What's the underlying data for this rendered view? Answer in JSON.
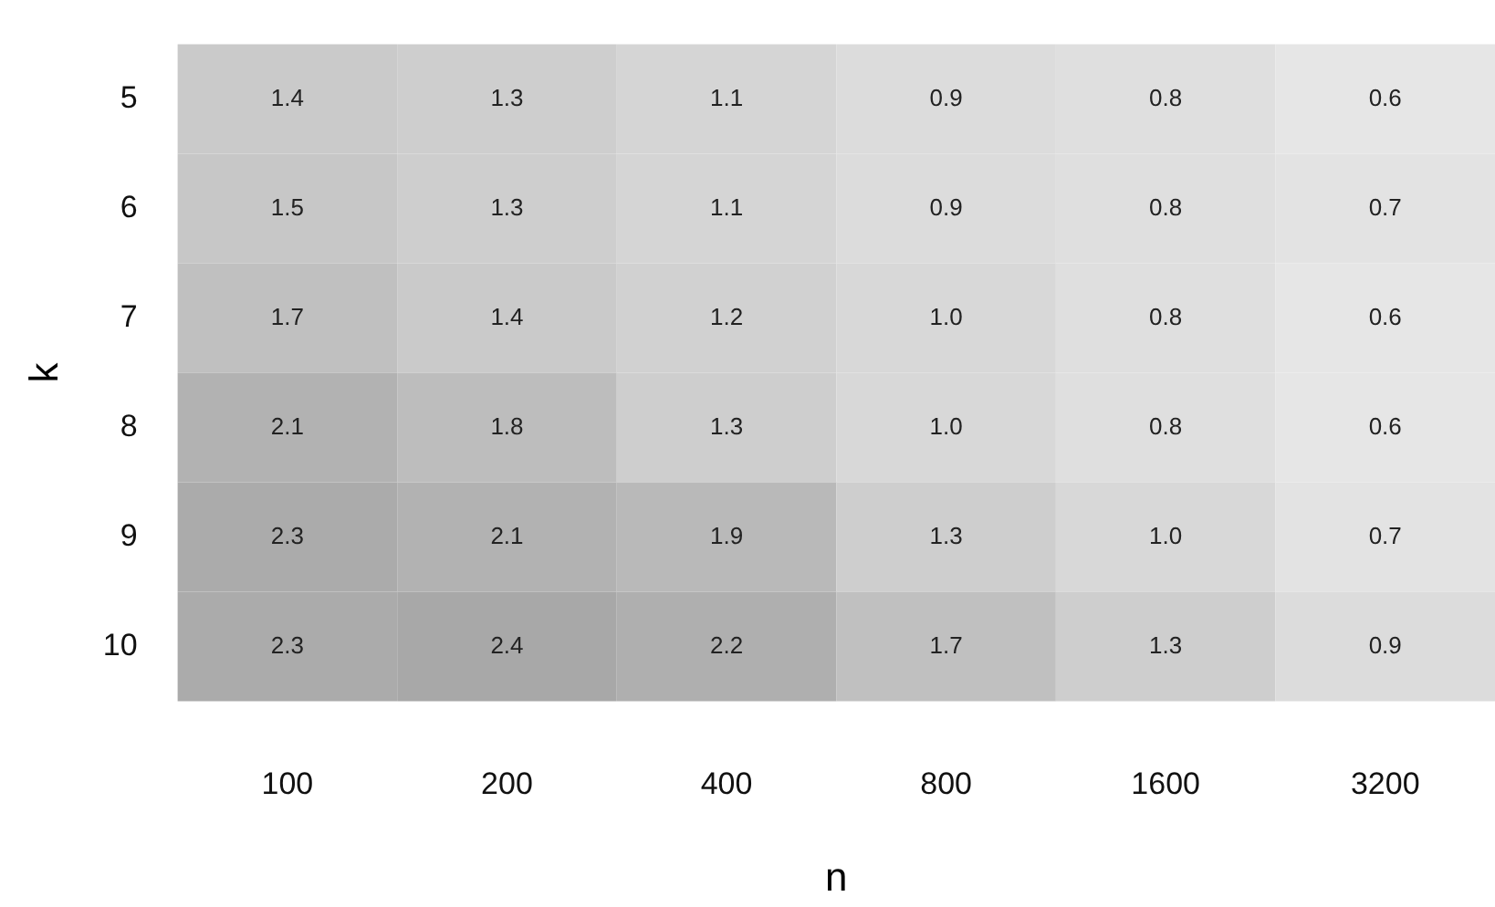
{
  "chart_data": {
    "type": "heatmap",
    "xlabel": "n",
    "ylabel": "k",
    "categories": [
      "100",
      "200",
      "400",
      "800",
      "1600",
      "3200"
    ],
    "y_categories": [
      "5",
      "6",
      "7",
      "8",
      "9",
      "10"
    ],
    "cells": [
      [
        1.4,
        1.3,
        1.1,
        0.9,
        0.8,
        0.6
      ],
      [
        1.5,
        1.3,
        1.1,
        0.9,
        0.8,
        0.7
      ],
      [
        1.7,
        1.4,
        1.2,
        1.0,
        0.8,
        0.6
      ],
      [
        2.1,
        1.8,
        1.3,
        1.0,
        0.8,
        0.6
      ],
      [
        2.3,
        2.1,
        1.9,
        1.3,
        1.0,
        0.7
      ],
      [
        2.3,
        2.4,
        2.2,
        1.7,
        1.3,
        0.9
      ]
    ],
    "cell_labels": [
      [
        "1.4",
        "1.3",
        "1.1",
        "0.9",
        "0.8",
        "0.6"
      ],
      [
        "1.5",
        "1.3",
        "1.1",
        "0.9",
        "0.8",
        "0.7"
      ],
      [
        "1.7",
        "1.4",
        "1.2",
        "1.0",
        "0.8",
        "0.6"
      ],
      [
        "2.1",
        "1.8",
        "1.3",
        "1.0",
        "0.8",
        "0.6"
      ],
      [
        "2.3",
        "2.1",
        "1.9",
        "1.3",
        "1.0",
        "0.7"
      ],
      [
        "2.3",
        "2.4",
        "2.2",
        "1.7",
        "1.3",
        "0.9"
      ]
    ]
  }
}
